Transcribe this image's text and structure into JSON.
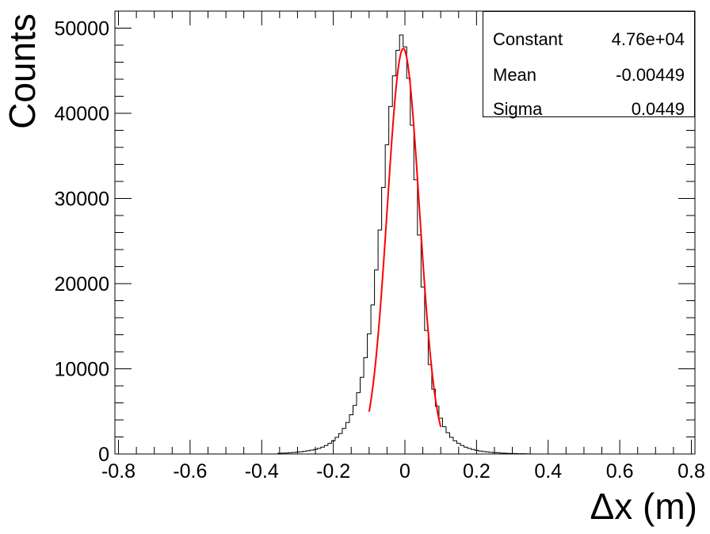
{
  "chart_data": {
    "type": "histogram",
    "title": "",
    "xlabel": "Δx (m)",
    "ylabel": "Counts",
    "xlim": [
      -0.81,
      0.81
    ],
    "ylim": [
      0,
      52000
    ],
    "xticks": [
      "-0.8",
      "-0.6",
      "-0.4",
      "-0.2",
      "0",
      "0.2",
      "0.4",
      "0.6",
      "0.8"
    ],
    "yticks": [
      "0",
      "10000",
      "20000",
      "30000",
      "40000",
      "50000"
    ],
    "bin_width": 0.01,
    "bins": [
      [
        -0.35,
        80
      ],
      [
        -0.34,
        100
      ],
      [
        -0.33,
        120
      ],
      [
        -0.32,
        150
      ],
      [
        -0.31,
        180
      ],
      [
        -0.3,
        220
      ],
      [
        -0.29,
        260
      ],
      [
        -0.28,
        310
      ],
      [
        -0.27,
        380
      ],
      [
        -0.26,
        450
      ],
      [
        -0.25,
        540
      ],
      [
        -0.24,
        650
      ],
      [
        -0.23,
        800
      ],
      [
        -0.22,
        1000
      ],
      [
        -0.21,
        1250
      ],
      [
        -0.2,
        1550
      ],
      [
        -0.19,
        1950
      ],
      [
        -0.18,
        2400
      ],
      [
        -0.17,
        3000
      ],
      [
        -0.16,
        3700
      ],
      [
        -0.15,
        4600
      ],
      [
        -0.14,
        5700
      ],
      [
        -0.13,
        7200
      ],
      [
        -0.12,
        9000
      ],
      [
        -0.11,
        11300
      ],
      [
        -0.1,
        14100
      ],
      [
        -0.09,
        17500
      ],
      [
        -0.08,
        21600
      ],
      [
        -0.07,
        26300
      ],
      [
        -0.06,
        31300
      ],
      [
        -0.05,
        36300
      ],
      [
        -0.04,
        40800
      ],
      [
        -0.03,
        44400
      ],
      [
        -0.02,
        47400
      ],
      [
        -0.01,
        49200
      ],
      [
        0.0,
        47800
      ],
      [
        0.01,
        44100
      ],
      [
        0.02,
        38600
      ],
      [
        0.03,
        32200
      ],
      [
        0.04,
        25700
      ],
      [
        0.05,
        19600
      ],
      [
        0.06,
        14500
      ],
      [
        0.07,
        10500
      ],
      [
        0.08,
        7600
      ],
      [
        0.09,
        5600
      ],
      [
        0.1,
        4200
      ],
      [
        0.11,
        3200
      ],
      [
        0.12,
        2500
      ],
      [
        0.13,
        1950
      ],
      [
        0.14,
        1550
      ],
      [
        0.15,
        1250
      ],
      [
        0.16,
        1000
      ],
      [
        0.17,
        800
      ],
      [
        0.18,
        650
      ],
      [
        0.19,
        530
      ],
      [
        0.2,
        430
      ],
      [
        0.21,
        350
      ],
      [
        0.22,
        290
      ],
      [
        0.23,
        240
      ],
      [
        0.24,
        200
      ],
      [
        0.25,
        165
      ],
      [
        0.26,
        135
      ],
      [
        0.27,
        110
      ],
      [
        0.28,
        90
      ],
      [
        0.29,
        75
      ],
      [
        0.3,
        60
      ],
      [
        0.31,
        50
      ],
      [
        0.32,
        40
      ],
      [
        0.33,
        30
      ],
      [
        0.34,
        20
      ]
    ],
    "fit": {
      "function": "gaussian",
      "range": [
        -0.1,
        0.1
      ],
      "color": "#ff0000",
      "constant": 47600,
      "mean": -0.00449,
      "sigma": 0.0449
    },
    "legend_position": "top-right",
    "stats": [
      {
        "name": "Constant",
        "value": "4.76e+04"
      },
      {
        "name": "Mean",
        "value": "-0.00449"
      },
      {
        "name": "Sigma",
        "value": "0.0449"
      }
    ]
  }
}
